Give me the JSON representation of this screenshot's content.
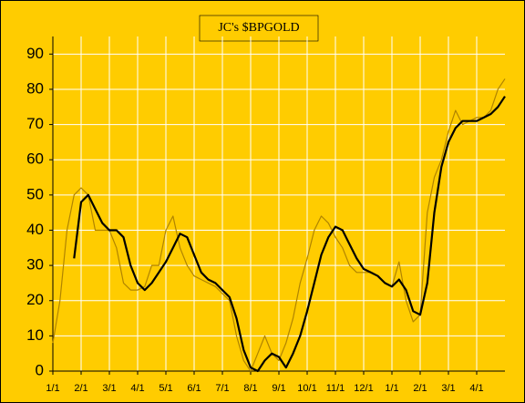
{
  "chart_data": {
    "type": "line",
    "title": "JC's $BPGOLD",
    "categories": [
      "1/1",
      null,
      null,
      null,
      "2/1",
      null,
      null,
      null,
      "3/1",
      null,
      null,
      null,
      "4/1",
      null,
      null,
      null,
      "5/1",
      null,
      null,
      null,
      "6/1",
      null,
      null,
      null,
      "7/1",
      null,
      null,
      null,
      "8/1",
      null,
      null,
      null,
      "9/1",
      null,
      null,
      null,
      "10/1",
      null,
      null,
      null,
      "11/1",
      null,
      null,
      null,
      "12/1",
      null,
      null,
      null,
      "1/1",
      null,
      null,
      null,
      "2/1",
      null,
      null,
      null,
      "3/1",
      null,
      null,
      null,
      "4/1",
      null,
      null,
      null,
      null
    ],
    "series": [
      {
        "color": "#b08400",
        "values": [
          8,
          20,
          40,
          50,
          52,
          50,
          40,
          40,
          40,
          35,
          25,
          23,
          23,
          24,
          30,
          30,
          40,
          44,
          35,
          30,
          27,
          26,
          25,
          24,
          22,
          20,
          10,
          3,
          0,
          5,
          10,
          5,
          3,
          8,
          15,
          25,
          32,
          40,
          44,
          42,
          38,
          35,
          30,
          28,
          28,
          28,
          27,
          25,
          24,
          31,
          20,
          14,
          16,
          45,
          55,
          60,
          68,
          74,
          70,
          71,
          72,
          72,
          74,
          80,
          83
        ]
      },
      {
        "color": "#000000",
        "values": [
          null,
          null,
          null,
          32,
          48,
          50,
          46,
          42,
          40,
          40,
          38,
          30,
          25,
          23,
          25,
          28,
          31,
          35,
          39,
          38,
          33,
          28,
          26,
          25,
          23,
          21,
          15,
          6,
          1,
          0,
          3,
          5,
          4,
          1,
          5,
          10,
          17,
          25,
          33,
          38,
          41,
          40,
          36,
          32,
          29,
          28,
          27,
          25,
          24,
          26,
          23,
          17,
          16,
          25,
          45,
          58,
          65,
          69,
          71,
          71,
          71,
          72,
          73,
          75,
          78
        ]
      }
    ],
    "ylim": [
      0,
      95
    ],
    "yticks": [
      0,
      10,
      20,
      30,
      40,
      50,
      60,
      70,
      80,
      90
    ],
    "grid": true
  }
}
